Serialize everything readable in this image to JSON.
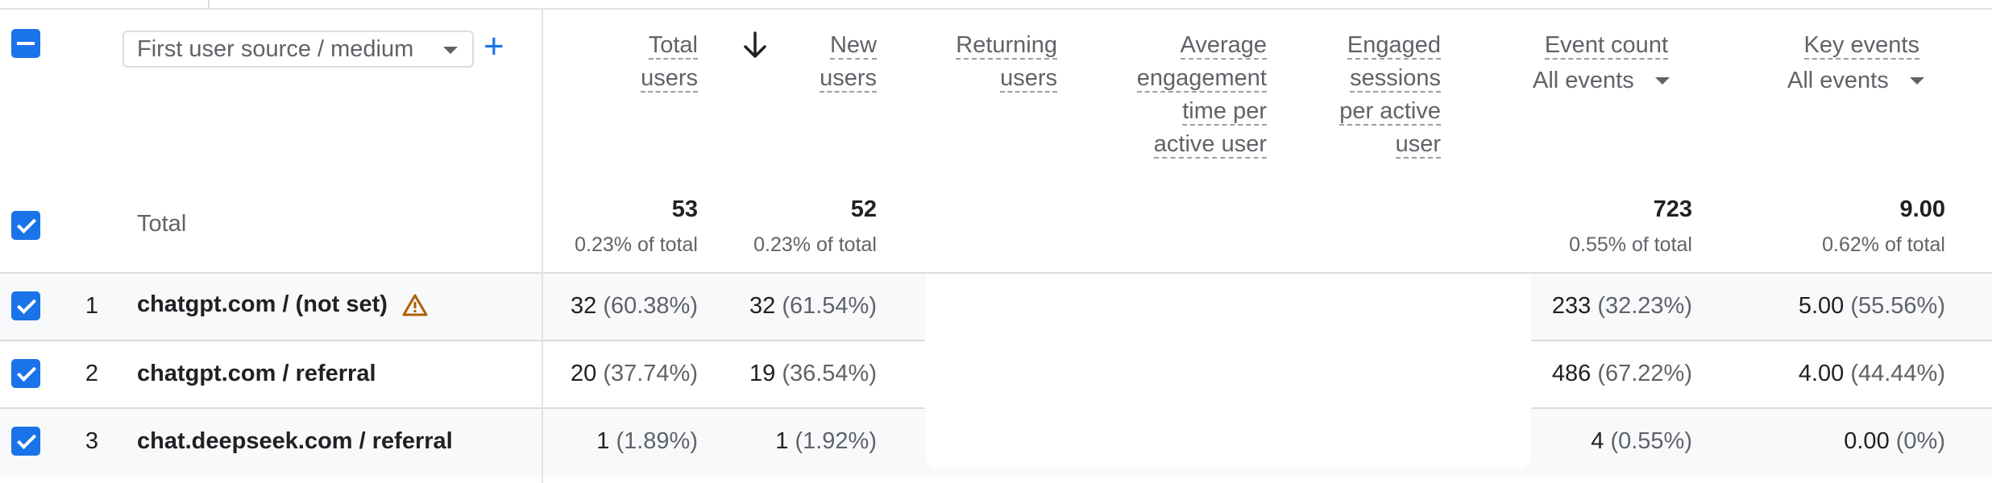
{
  "dimension": {
    "label": "First user source / medium"
  },
  "columns": [
    {
      "id": "total_users",
      "lines": [
        "Total",
        "users"
      ]
    },
    {
      "id": "new_users",
      "lines": [
        "New",
        "users"
      ],
      "sorted": "desc"
    },
    {
      "id": "returning_users",
      "lines": [
        "Returning",
        "users"
      ]
    },
    {
      "id": "avg_engagement",
      "lines": [
        "Average",
        "engagement",
        "time per",
        "active user"
      ]
    },
    {
      "id": "engaged_sessions",
      "lines": [
        "Engaged",
        "sessions",
        "per active",
        "user"
      ]
    },
    {
      "id": "event_count",
      "lines": [
        "Event count"
      ],
      "filter": "All events"
    },
    {
      "id": "key_events",
      "lines": [
        "Key events"
      ],
      "filter": "All events"
    }
  ],
  "totals": {
    "label": "Total",
    "total_users": {
      "value": "53",
      "pct": "0.23% of total"
    },
    "new_users": {
      "value": "52",
      "pct": "0.23% of total"
    },
    "event_count": {
      "value": "723",
      "pct": "0.55% of total"
    },
    "key_events": {
      "value": "9.00",
      "pct": "0.62% of total"
    }
  },
  "rows": [
    {
      "rank": "1",
      "label": "chatgpt.com / (not set)",
      "warning": true,
      "total_users": [
        "32",
        "(60.38%)"
      ],
      "new_users": [
        "32",
        "(61.54%)"
      ],
      "event_count": [
        "233",
        "(32.23%)"
      ],
      "key_events": [
        "5.00",
        "(55.56%)"
      ]
    },
    {
      "rank": "2",
      "label": "chatgpt.com / referral",
      "warning": false,
      "total_users": [
        "20",
        "(37.74%)"
      ],
      "new_users": [
        "19",
        "(36.54%)"
      ],
      "event_count": [
        "486",
        "(67.22%)"
      ],
      "key_events": [
        "4.00",
        "(44.44%)"
      ]
    },
    {
      "rank": "3",
      "label": "chat.deepseek.com / referral",
      "warning": false,
      "total_users": [
        "1",
        "(1.89%)"
      ],
      "new_users": [
        "1",
        "(1.92%)"
      ],
      "event_count": [
        "4",
        "(0.55%)"
      ],
      "key_events": [
        "0.00",
        "(0%)"
      ]
    }
  ],
  "icons": {
    "select_all": "minus-checkbox-icon",
    "row_checkbox": "checkbox-checked-icon",
    "add_dimension": "plus-icon",
    "sort": "arrow-down-icon",
    "warning": "warning-triangle-icon",
    "dropdown": "caret-down-icon"
  },
  "colors": {
    "accent": "#1a73e8",
    "warning": "#b06000",
    "row_alt": "#f8f9fa"
  }
}
